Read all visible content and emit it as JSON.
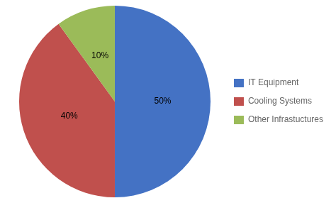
{
  "chart_data": {
    "type": "pie",
    "categories": [
      "IT Equipment",
      "Cooling Systems",
      "Other Infrastuctures"
    ],
    "values": [
      50,
      40,
      10
    ],
    "value_labels": [
      "50%",
      "40%",
      "10%"
    ],
    "colors": [
      "#4472C4",
      "#C0504D",
      "#9BBB59"
    ],
    "data_labels": true,
    "legend": "right"
  }
}
